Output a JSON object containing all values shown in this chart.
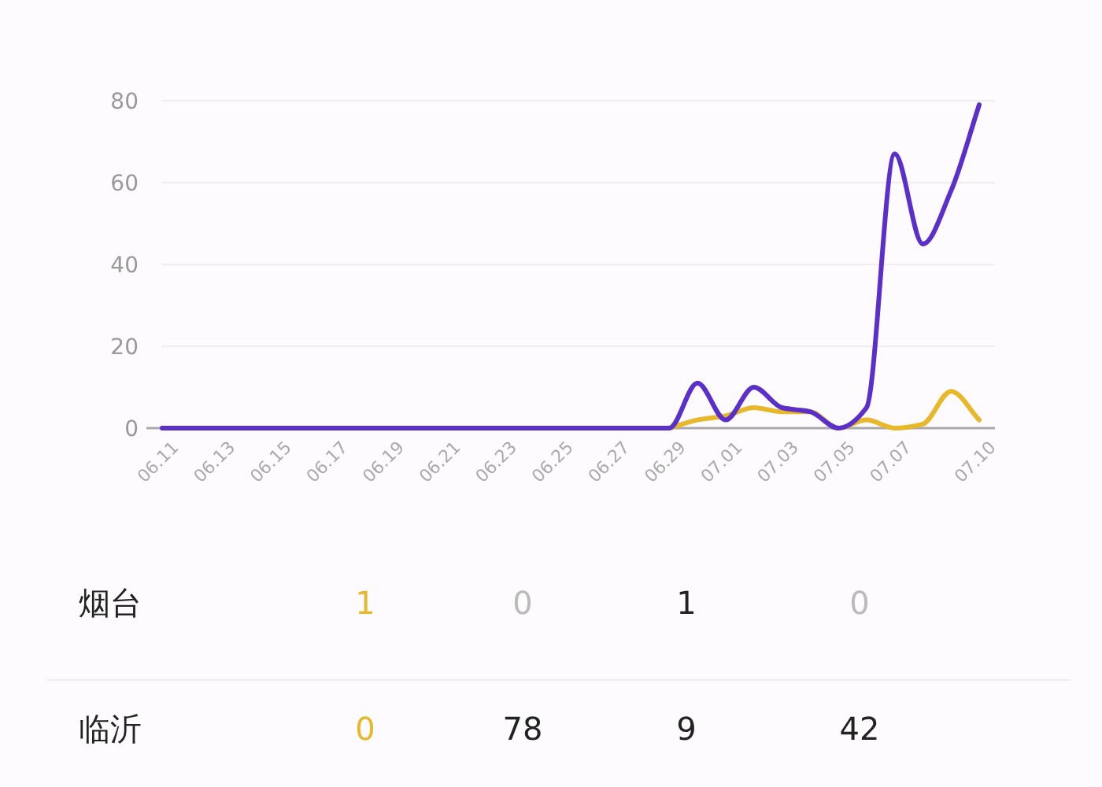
{
  "chart_data": {
    "type": "line",
    "categories": [
      "06.11",
      null,
      "06.13",
      null,
      "06.15",
      null,
      "06.17",
      null,
      "06.19",
      null,
      "06.21",
      null,
      "06.23",
      null,
      "06.25",
      null,
      "06.27",
      null,
      "06.29",
      null,
      "07.01",
      null,
      "07.03",
      null,
      "07.05",
      null,
      "07.07",
      null,
      null,
      "07.10"
    ],
    "series": [
      {
        "color": "#e6b82a",
        "values": [
          null,
          null,
          null,
          null,
          null,
          null,
          null,
          null,
          null,
          null,
          null,
          null,
          null,
          null,
          null,
          null,
          null,
          null,
          0,
          2,
          3,
          5,
          4,
          4,
          0,
          2,
          0,
          1,
          9,
          2
        ]
      },
      {
        "color": "#5b2fc9",
        "values": [
          0,
          0,
          0,
          0,
          0,
          0,
          0,
          0,
          0,
          0,
          0,
          0,
          0,
          0,
          0,
          0,
          0,
          0,
          0,
          11,
          2,
          10,
          5,
          4,
          0,
          5,
          67,
          45,
          58,
          79
        ]
      }
    ],
    "ylim": [
      0,
      80
    ],
    "yticks": [
      0,
      20,
      40,
      60,
      80
    ],
    "grid": "y",
    "annotations": [
      "烟台",
      "1",
      "0",
      "1",
      "0",
      "临沂",
      "0",
      "78",
      "9",
      "42"
    ]
  }
}
